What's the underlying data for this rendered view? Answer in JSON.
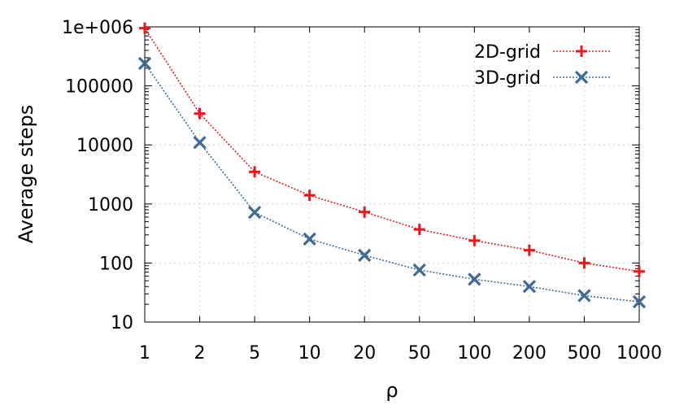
{
  "chart_data": {
    "type": "line",
    "title": "",
    "xlabel": "ρ",
    "ylabel": "Average steps",
    "y_scale": "log",
    "ylim": [
      10,
      1000000
    ],
    "x_scale": "categorical",
    "categories": [
      "1",
      "2",
      "5",
      "10",
      "20",
      "50",
      "100",
      "200",
      "500",
      "1000"
    ],
    "y_tick_labels": [
      "10",
      "100",
      "1000",
      "10000",
      "100000",
      "1e+006"
    ],
    "y_tick_values": [
      10,
      100,
      1000,
      10000,
      100000,
      1000000
    ],
    "grid": true,
    "legend_position": "top-right",
    "series": [
      {
        "name": "2D-grid",
        "color": "#e8191d",
        "marker": "plus",
        "line_style": "dotted",
        "values": [
          950000,
          34000,
          3500,
          1400,
          730,
          370,
          240,
          165,
          100,
          72
        ]
      },
      {
        "name": "3D-grid",
        "color": "#3f6a92",
        "marker": "x",
        "line_style": "dotted",
        "values": [
          240000,
          11000,
          720,
          255,
          135,
          76,
          53,
          40,
          28,
          22
        ]
      }
    ]
  }
}
